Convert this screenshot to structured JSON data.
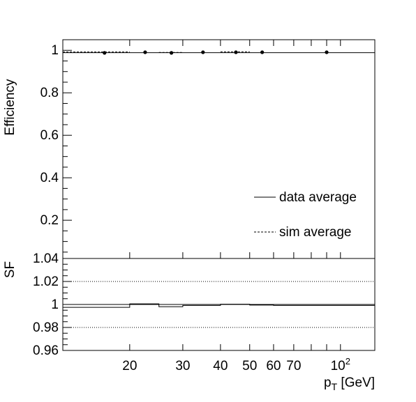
{
  "chart_data": [
    {
      "type": "scatter",
      "panel": "top",
      "ylabel": "Efficiency",
      "xscale": "log",
      "xlim": [
        12,
        130
      ],
      "ylim": [
        0.02,
        1.05
      ],
      "yticks": [
        {
          "value": 0.2,
          "label": "0.2"
        },
        {
          "value": 0.4,
          "label": "0.4"
        },
        {
          "value": 0.6,
          "label": "0.6"
        },
        {
          "value": 0.8,
          "label": "0.8"
        },
        {
          "value": 1.0,
          "label": "1"
        }
      ],
      "legend": {
        "placement": "bottom-right",
        "entries": [
          {
            "label": "data average",
            "style": "solid"
          },
          {
            "label": "sim average",
            "style": "dashed"
          }
        ]
      },
      "data_points": {
        "x": [
          16.5,
          22.5,
          27.5,
          35,
          45,
          55,
          90
        ],
        "y": [
          0.988,
          0.991,
          0.988,
          0.991,
          0.991,
          0.991,
          0.991
        ]
      },
      "data_average": 0.989,
      "sim_bins": {
        "edges": [
          12,
          20,
          25,
          30,
          40,
          50,
          60,
          130
        ],
        "values": [
          0.992,
          null,
          0.99,
          null,
          0.993,
          null,
          null
        ]
      }
    },
    {
      "type": "line",
      "panel": "bottom",
      "ylabel": "SF",
      "xlabel": "p_T [GeV]",
      "xlabel_main": "p",
      "xlabel_sub": "T",
      "xlabel_unit": " [GeV]",
      "xscale": "log",
      "xlim": [
        12,
        130
      ],
      "ylim": [
        0.96,
        1.04
      ],
      "yticks": [
        {
          "value": 0.96,
          "label": "0.96"
        },
        {
          "value": 0.98,
          "label": "0.98"
        },
        {
          "value": 1.0,
          "label": "1"
        },
        {
          "value": 1.02,
          "label": "1.02"
        },
        {
          "value": 1.04,
          "label": "1.04"
        }
      ],
      "xticks": [
        {
          "value": 20,
          "label": "20"
        },
        {
          "value": 30,
          "label": "30"
        },
        {
          "value": 40,
          "label": "40"
        },
        {
          "value": 50,
          "label": "50"
        },
        {
          "value": 60,
          "label": "60"
        },
        {
          "value": 70,
          "label": "70"
        },
        {
          "value": 100,
          "label": "10",
          "sup": "2"
        }
      ],
      "reference_lines": {
        "solid": 1.0,
        "dotted": [
          0.98,
          1.02
        ]
      },
      "sf_bins": {
        "edges": [
          12,
          20,
          25,
          30,
          40,
          50,
          60,
          130
        ],
        "values": [
          0.9975,
          1.0005,
          0.998,
          0.9992,
          1.0002,
          0.9995,
          0.9992
        ]
      }
    }
  ]
}
